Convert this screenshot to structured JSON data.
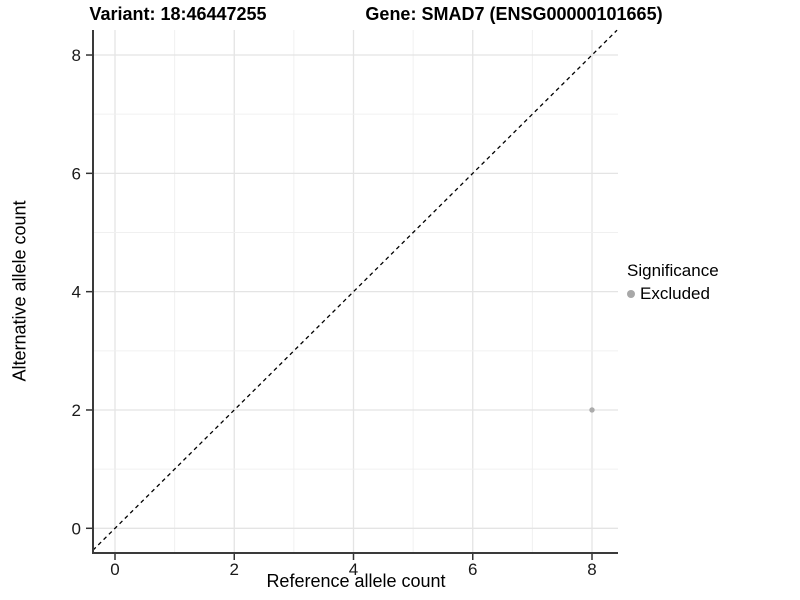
{
  "chart_data": {
    "type": "scatter",
    "title_left": "Variant: 18:46447255",
    "title_right": "Gene: SMAD7 (ENSG00000101665)",
    "xlabel": "Reference allele count",
    "ylabel": "Alternative allele count",
    "xlim": [
      -0.37,
      8.45
    ],
    "ylim": [
      -0.42,
      8.42
    ],
    "xticks": [
      0,
      2,
      4,
      6,
      8
    ],
    "yticks": [
      0,
      2,
      4,
      6,
      8
    ],
    "grid": {
      "on": true,
      "minor_every": 1,
      "major_every": 2
    },
    "reference_line": {
      "kind": "identity",
      "slope": 1,
      "intercept": 0,
      "style": "dashed",
      "color": "#000000"
    },
    "series": [
      {
        "name": "Excluded",
        "marker": "circle",
        "color": "#ababab",
        "points": [
          {
            "x": 8,
            "y": 2
          }
        ]
      }
    ],
    "legend": {
      "position": "right",
      "title": "Significance",
      "items": [
        {
          "label": "Excluded",
          "marker": "circle",
          "color": "#a8a8a8"
        }
      ]
    },
    "colors": {
      "background": "#ffffff",
      "grid_major": "#e4e4e4",
      "grid_minor": "#f0f0f0",
      "axis_line": "#3a3a3a",
      "tick_mark": "#333333",
      "tick_label": "#1a1a1a"
    }
  }
}
